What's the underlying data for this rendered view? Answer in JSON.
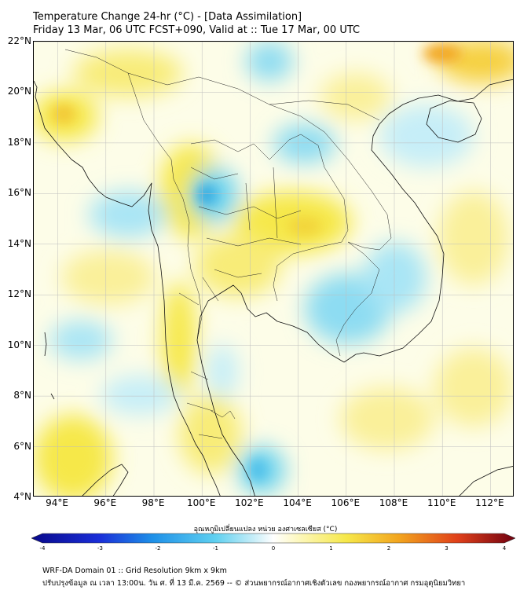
{
  "title_line1": "Temperature Change 24-hr (°C) - [Data Assimilation]",
  "title_line2": "Friday 13 Mar, 06 UTC FCST+090, Valid at :: Tue 17 Mar, 00 UTC",
  "map": {
    "lat_range": [
      4,
      22
    ],
    "lon_range": [
      93,
      113
    ],
    "lat_ticks": [
      {
        "value": 22,
        "label": "22°N"
      },
      {
        "value": 20,
        "label": "20°N"
      },
      {
        "value": 18,
        "label": "18°N"
      },
      {
        "value": 16,
        "label": "16°N"
      },
      {
        "value": 14,
        "label": "14°N"
      },
      {
        "value": 12,
        "label": "12°N"
      },
      {
        "value": 10,
        "label": "10°N"
      },
      {
        "value": 8,
        "label": "8°N"
      },
      {
        "value": 6,
        "label": "6°N"
      },
      {
        "value": 4,
        "label": "4°N"
      }
    ],
    "lon_ticks": [
      {
        "value": 94,
        "label": "94°E"
      },
      {
        "value": 96,
        "label": "96°E"
      },
      {
        "value": 98,
        "label": "98°E"
      },
      {
        "value": 100,
        "label": "100°E"
      },
      {
        "value": 102,
        "label": "102°E"
      },
      {
        "value": 104,
        "label": "104°E"
      },
      {
        "value": 106,
        "label": "106°E"
      },
      {
        "value": 108,
        "label": "108°E"
      },
      {
        "value": 110,
        "label": "110°E"
      },
      {
        "value": 112,
        "label": "112°E"
      }
    ]
  },
  "colorbar": {
    "label": "อุณหภูมิเปลี่ยนแปลง หน่วย องศาเซลเซียส (°C)",
    "min": -4,
    "max": 4,
    "ticks": [
      "-4",
      "-3",
      "-2",
      "-1",
      "0",
      "1",
      "2",
      "3",
      "4"
    ]
  },
  "footer_line1": "WRF-DA Domain 01 :: Grid Resolution 9km x 9km",
  "footer_line2": "ปรับปรุงข้อมูล ณ เวลา 13:00น. วัน ศ. ที่ 13 มี.ค. 2569 -- © ส่วนพยากรณ์อากาศเชิงตัวเลข กองพยากรณ์อากาศ กรมอุตุนิยมวิทยา",
  "colors": {
    "warm": "#f6e84a",
    "warm_strong": "#f2a41e",
    "cool": "#6dd3ef",
    "cool_strong": "#2fa9e2",
    "neutral": "#fdfde8",
    "border": "#000000",
    "grid": "#bdbdbd"
  }
}
